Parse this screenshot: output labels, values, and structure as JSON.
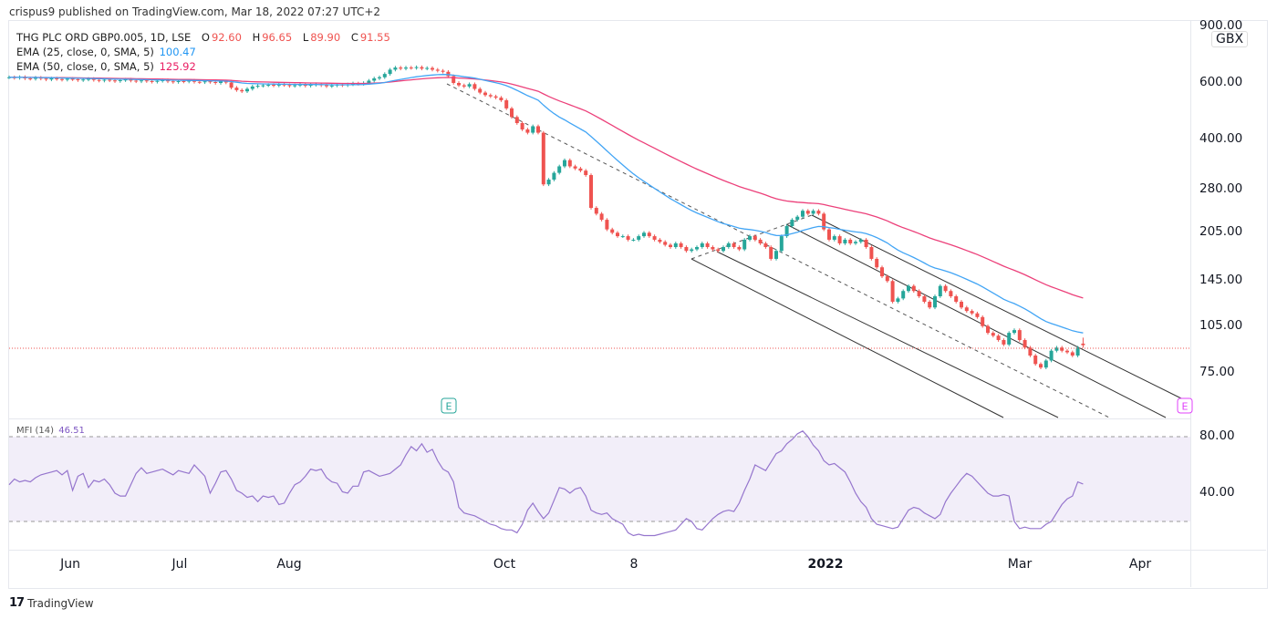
{
  "header": {
    "published": "crispus9 published on TradingView.com, Mar 18, 2022 07:27 UTC+2"
  },
  "legend": {
    "symbol": "THG PLC ORD GBP0.005, 1D, LSE",
    "o_label": "O",
    "o": "92.60",
    "h_label": "H",
    "h": "96.65",
    "l_label": "L",
    "l": "89.90",
    "c_label": "C",
    "c": "91.55",
    "ema25_label": "EMA (25, close, 0, SMA, 5)",
    "ema25": "100.47",
    "ema50_label": "EMA (50, close, 0, SMA, 5)",
    "ema50": "125.92",
    "mfi_label": "MFI (14)",
    "mfi": "46.51"
  },
  "colors": {
    "up": "#26a69a",
    "down": "#ef5350",
    "ema25": "#42a5f5",
    "ema50": "#ec407a",
    "mfi": "#9575cd",
    "mfi_band": "#f2eef9"
  },
  "footer": {
    "brand": "TradingView"
  },
  "chart_data": [
    {
      "type": "candlestick",
      "title": "THG PLC ORD GBP0.005, 1D, LSE",
      "y_scale": "log",
      "currency": "GBX",
      "ylim": [
        60,
        900
      ],
      "y_ticks": [
        "900.00",
        "600.00",
        "400.00",
        "280.00",
        "205.00",
        "145.00",
        "105.00",
        "75.00"
      ],
      "x_ticks": [
        "Jun",
        "Jul",
        "Aug",
        "Oct",
        "8",
        "2022",
        "Mar",
        "Apr"
      ],
      "last": {
        "open": 92.6,
        "high": 96.65,
        "low": 89.9,
        "close": 91.55
      },
      "closes": [
        625,
        622,
        626,
        620,
        618,
        623,
        619,
        615,
        620,
        617,
        614,
        618,
        616,
        612,
        615,
        618,
        613,
        610,
        614,
        611,
        608,
        612,
        615,
        610,
        607,
        611,
        608,
        605,
        609,
        612,
        607,
        604,
        608,
        606,
        610,
        605,
        603,
        607,
        604,
        600,
        606,
        602,
        580,
        570,
        565,
        575,
        585,
        588,
        590,
        592,
        589,
        594,
        591,
        587,
        590,
        593,
        588,
        592,
        595,
        590,
        586,
        589,
        593,
        590,
        594,
        598,
        596,
        600,
        610,
        620,
        625,
        640,
        660,
        670,
        665,
        670,
        668,
        672,
        665,
        668,
        660,
        655,
        650,
        630,
        600,
        590,
        585,
        595,
        575,
        560,
        550,
        545,
        540,
        530,
        500,
        470,
        450,
        430,
        420,
        440,
        420,
        290,
        300,
        315,
        330,
        345,
        330,
        325,
        320,
        310,
        245,
        235,
        225,
        210,
        205,
        200,
        200,
        195,
        195,
        200,
        205,
        200,
        195,
        192,
        188,
        185,
        190,
        185,
        180,
        182,
        185,
        190,
        185,
        182,
        180,
        185,
        190,
        185,
        182,
        195,
        200,
        195,
        190,
        185,
        170,
        180,
        200,
        215,
        225,
        230,
        240,
        235,
        240,
        235,
        210,
        195,
        200,
        190,
        195,
        190,
        192,
        195,
        185,
        170,
        160,
        150,
        145,
        125,
        128,
        135,
        140,
        135,
        130,
        125,
        120,
        130,
        140,
        135,
        130,
        125,
        120,
        117,
        115,
        112,
        105,
        100,
        98,
        95,
        92,
        100,
        102,
        95,
        90,
        85,
        80,
        78,
        82,
        88,
        90,
        88,
        87,
        85,
        90,
        91.55
      ],
      "series": [
        {
          "name": "EMA (25, close, 0, SMA, 5)",
          "period": 25
        },
        {
          "name": "EMA (50, close, 0, SMA, 5)",
          "period": 50
        }
      ]
    },
    {
      "type": "line",
      "title": "MFI (14)",
      "ylim": [
        0,
        100
      ],
      "y_ticks": [
        "80.00",
        "40.00"
      ],
      "band": [
        20,
        80
      ],
      "values": [
        46,
        50,
        48,
        49,
        48,
        51,
        53,
        54,
        55,
        56,
        53,
        56,
        42,
        52,
        54,
        44,
        49,
        48,
        50,
        46,
        40,
        38,
        38,
        46,
        54,
        58,
        54,
        55,
        56,
        57,
        55,
        53,
        56,
        55,
        54,
        60,
        56,
        52,
        40,
        47,
        55,
        56,
        50,
        42,
        40,
        37,
        38,
        34,
        38,
        37,
        38,
        32,
        33,
        40,
        46,
        48,
        52,
        57,
        56,
        57,
        51,
        48,
        47,
        41,
        40,
        45,
        45,
        55,
        56,
        54,
        52,
        53,
        54,
        57,
        60,
        67,
        73,
        70,
        75,
        69,
        71,
        63,
        57,
        55,
        48,
        30,
        26,
        25,
        24,
        22,
        20,
        18,
        17,
        15,
        14,
        14,
        12,
        18,
        28,
        33,
        27,
        22,
        26,
        35,
        44,
        43,
        40,
        43,
        44,
        38,
        28,
        26,
        25,
        26,
        22,
        20,
        18,
        12,
        10,
        11,
        10,
        10,
        10,
        11,
        12,
        13,
        14,
        18,
        22,
        20,
        15,
        14,
        18,
        22,
        25,
        27,
        28,
        27,
        33,
        42,
        50,
        60,
        58,
        56,
        62,
        68,
        70,
        75,
        78,
        82,
        84,
        80,
        74,
        70,
        63,
        60,
        61,
        58,
        55,
        48,
        40,
        34,
        30,
        22,
        18,
        17,
        16,
        15,
        16,
        22,
        28,
        30,
        29,
        26,
        24,
        22,
        25,
        34,
        40,
        45,
        50,
        54,
        52,
        48,
        44,
        40,
        38,
        38,
        39,
        38,
        20,
        15,
        16,
        15,
        15,
        15,
        18,
        20,
        26,
        32,
        36,
        38,
        48,
        46.51
      ]
    }
  ]
}
